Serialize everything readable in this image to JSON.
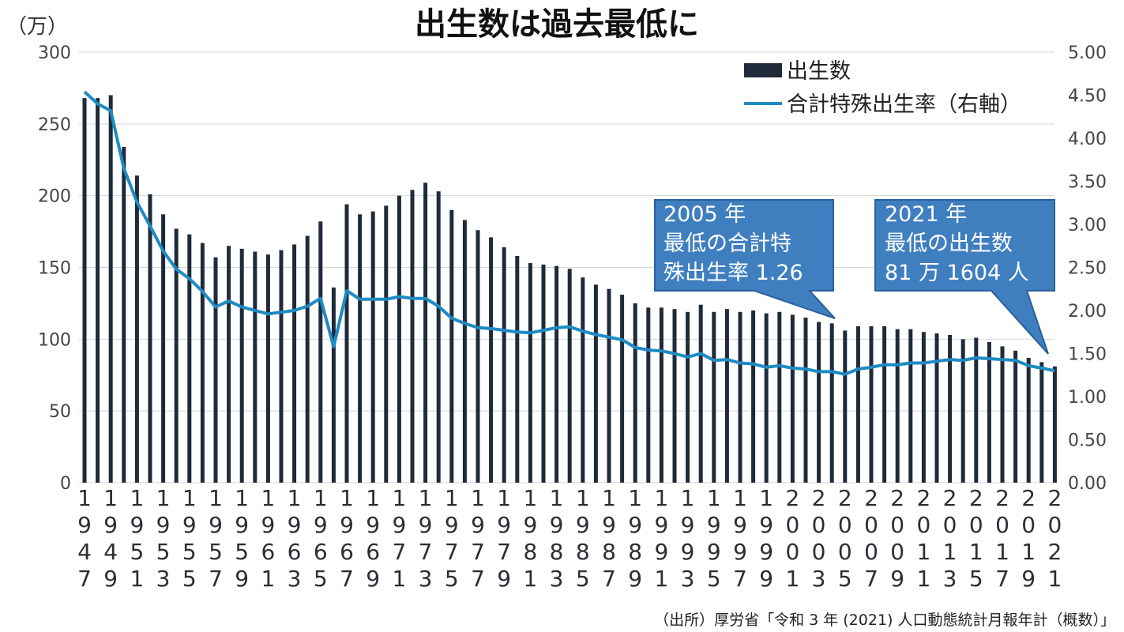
{
  "title": "出生数は過去最低に",
  "unit": "（万）",
  "legend": {
    "bars": "出生数",
    "line": "合計特殊出生率（右軸）"
  },
  "colors": {
    "bars": "#1f2a3a",
    "line": "#1e8bc3",
    "callout_fill": "#3f7fc0",
    "callout_border": "#2a5f9a",
    "grid": "#d6d6d6"
  },
  "callouts": [
    {
      "lines": [
        "2005 年",
        "最低の合計特",
        "殊出生率 1.26"
      ]
    },
    {
      "lines": [
        "2021 年",
        "最低の出生数",
        "81 万 1604 人"
      ]
    }
  ],
  "source": "（出所）厚労省「令和 3 年 (2021) 人口動態統計月報年計（概数）」",
  "chart_data": {
    "type": "bar",
    "x_tick_labels": [
      "1947",
      "1949",
      "1951",
      "1953",
      "1955",
      "1957",
      "1959",
      "1961",
      "1963",
      "1965",
      "1967",
      "1969",
      "1971",
      "1973",
      "1975",
      "1977",
      "1979",
      "1981",
      "1983",
      "1985",
      "1987",
      "1989",
      "1991",
      "1993",
      "1995",
      "1997",
      "1999",
      "2001",
      "2003",
      "2005",
      "2007",
      "2009",
      "2011",
      "2013",
      "2015",
      "2017",
      "2019",
      "2021"
    ],
    "y_left": {
      "label": "（万）",
      "range": [
        0,
        300
      ],
      "ticks": [
        0,
        50,
        100,
        150,
        200,
        250,
        300
      ]
    },
    "y_right": {
      "range": [
        0,
        5
      ],
      "ticks": [
        "0.00",
        "0.50",
        "1.00",
        "1.50",
        "2.00",
        "2.50",
        "3.00",
        "3.50",
        "4.00",
        "4.50",
        "5.00"
      ]
    },
    "grid": true,
    "legend_position": "top-right",
    "x": [
      1947,
      1948,
      1949,
      1950,
      1951,
      1952,
      1953,
      1954,
      1955,
      1956,
      1957,
      1958,
      1959,
      1960,
      1961,
      1962,
      1963,
      1964,
      1965,
      1966,
      1967,
      1968,
      1969,
      1970,
      1971,
      1972,
      1973,
      1974,
      1975,
      1976,
      1977,
      1978,
      1979,
      1980,
      1981,
      1982,
      1983,
      1984,
      1985,
      1986,
      1987,
      1988,
      1989,
      1990,
      1991,
      1992,
      1993,
      1994,
      1995,
      1996,
      1997,
      1998,
      1999,
      2000,
      2001,
      2002,
      2003,
      2004,
      2005,
      2006,
      2007,
      2008,
      2009,
      2010,
      2011,
      2012,
      2013,
      2014,
      2015,
      2016,
      2017,
      2018,
      2019,
      2020,
      2021
    ],
    "series": [
      {
        "name": "出生数",
        "type": "bar",
        "axis": "left",
        "values": [
          268,
          268,
          270,
          234,
          214,
          201,
          187,
          177,
          173,
          167,
          157,
          165,
          163,
          161,
          159,
          162,
          166,
          172,
          182,
          136,
          194,
          187,
          189,
          193,
          200,
          204,
          209,
          203,
          190,
          183,
          176,
          171,
          164,
          158,
          153,
          152,
          151,
          149,
          143,
          138,
          135,
          131,
          125,
          122,
          122,
          121,
          119,
          124,
          119,
          121,
          119,
          120,
          118,
          119,
          117,
          115,
          112,
          111,
          106,
          109,
          109,
          109,
          107,
          107,
          105,
          104,
          103,
          100,
          101,
          98,
          95,
          92,
          87,
          84,
          81
        ]
      },
      {
        "name": "合計特殊出生率",
        "type": "line",
        "axis": "right",
        "values": [
          4.54,
          4.4,
          4.32,
          3.65,
          3.26,
          2.98,
          2.69,
          2.48,
          2.37,
          2.22,
          2.04,
          2.11,
          2.04,
          2.0,
          1.96,
          1.98,
          2.0,
          2.05,
          2.14,
          1.58,
          2.23,
          2.13,
          2.13,
          2.13,
          2.16,
          2.14,
          2.14,
          2.05,
          1.91,
          1.85,
          1.8,
          1.79,
          1.77,
          1.75,
          1.74,
          1.77,
          1.8,
          1.81,
          1.76,
          1.72,
          1.69,
          1.66,
          1.57,
          1.54,
          1.53,
          1.5,
          1.46,
          1.5,
          1.42,
          1.43,
          1.39,
          1.38,
          1.34,
          1.36,
          1.33,
          1.32,
          1.29,
          1.29,
          1.26,
          1.32,
          1.34,
          1.37,
          1.37,
          1.39,
          1.39,
          1.41,
          1.43,
          1.42,
          1.45,
          1.44,
          1.43,
          1.42,
          1.36,
          1.33,
          1.3
        ]
      }
    ]
  }
}
